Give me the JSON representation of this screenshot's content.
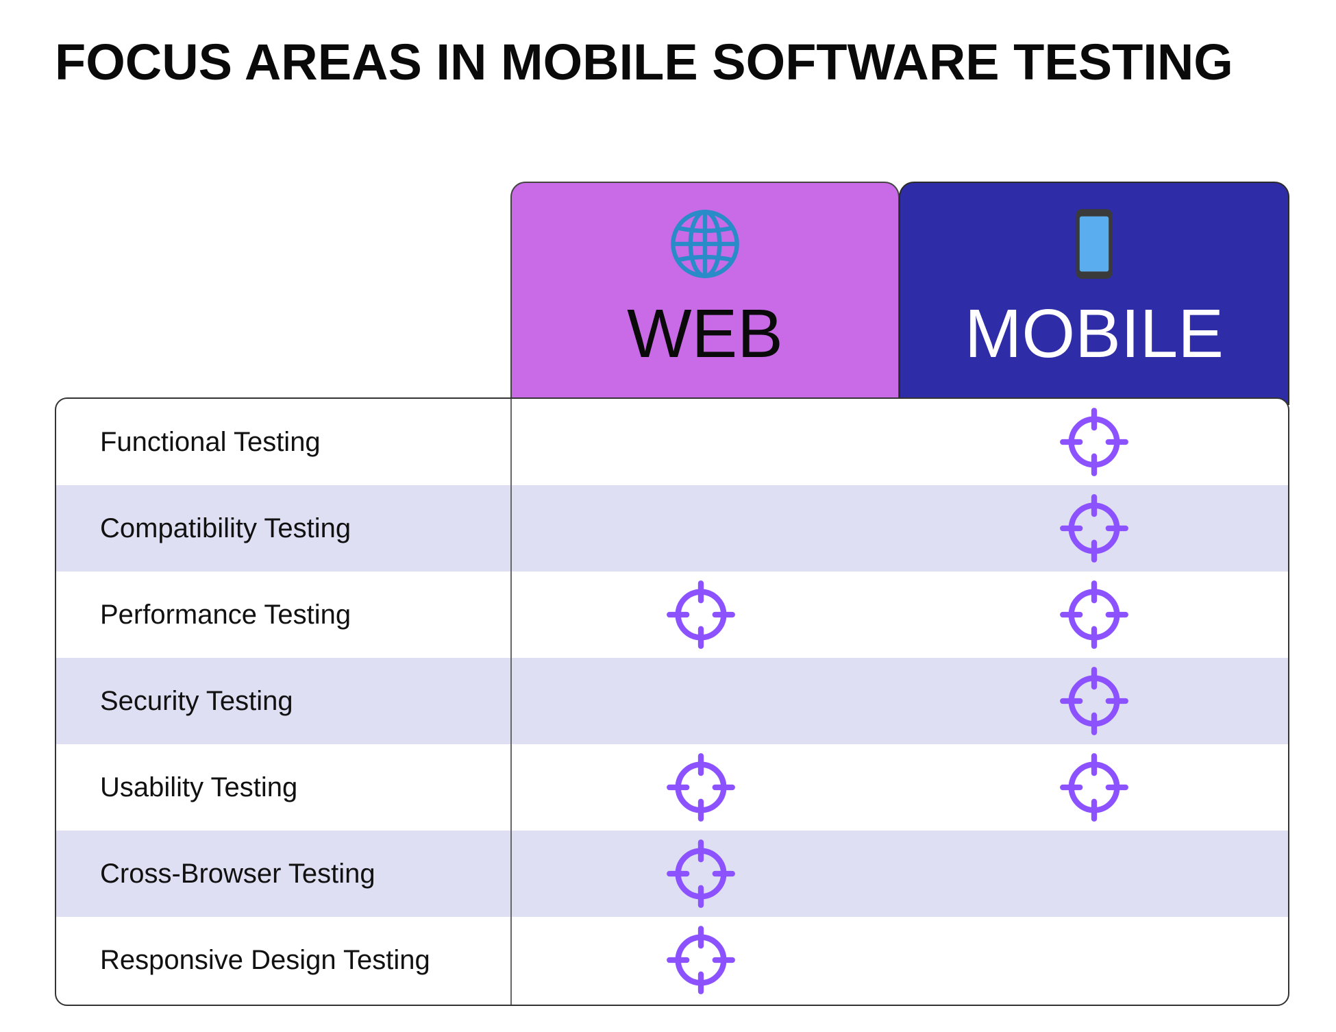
{
  "title": "FOCUS AREAS IN MOBILE SOFTWARE TESTING",
  "columns": {
    "web": {
      "label": "WEB",
      "icon": "globe-icon",
      "color": "#c96ae6"
    },
    "mobile": {
      "label": "MOBILE",
      "icon": "smartphone-icon",
      "color": "#2f2ca8"
    }
  },
  "marker_icon": "crosshair-target-icon",
  "marker_color": "#8c52ff",
  "rows": [
    {
      "label": "Functional Testing",
      "web": false,
      "mobile": true
    },
    {
      "label": "Compatibility Testing",
      "web": false,
      "mobile": true
    },
    {
      "label": "Performance Testing",
      "web": true,
      "mobile": true
    },
    {
      "label": "Security Testing",
      "web": false,
      "mobile": true
    },
    {
      "label": "Usability Testing",
      "web": true,
      "mobile": true
    },
    {
      "label": "Cross-Browser Testing",
      "web": true,
      "mobile": false
    },
    {
      "label": "Responsive Design Testing",
      "web": true,
      "mobile": false
    }
  ]
}
